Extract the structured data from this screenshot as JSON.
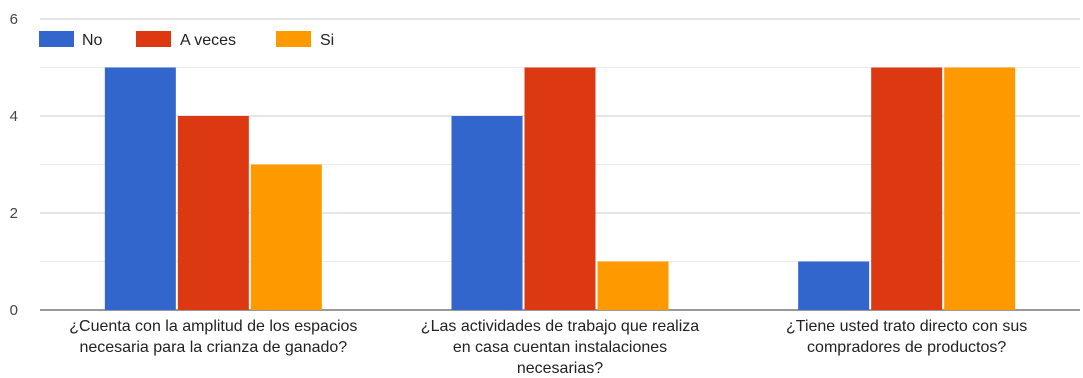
{
  "chart_data": {
    "type": "bar",
    "title": "",
    "xlabel": "",
    "ylabel": "",
    "ylim": [
      0,
      6
    ],
    "yticks": [
      0,
      2,
      4,
      6
    ],
    "grid": true,
    "legend_position": "top-left",
    "categories": [
      [
        "¿Cuenta con la amplitud de los espacios",
        "necesaria para la crianza de ganado?"
      ],
      [
        "¿Las actividades de trabajo que realiza",
        "en casa cuentan instalaciones",
        "necesarias?"
      ],
      [
        "¿Tiene usted trato directo con sus",
        "compradores de productos?"
      ]
    ],
    "series": [
      {
        "name": "No",
        "color": "#3366cc",
        "values": [
          5,
          4,
          1
        ]
      },
      {
        "name": "A veces",
        "color": "#dc3912",
        "values": [
          4,
          5,
          5
        ]
      },
      {
        "name": "Si",
        "color": "#ff9900",
        "values": [
          3,
          1,
          5
        ]
      }
    ]
  }
}
